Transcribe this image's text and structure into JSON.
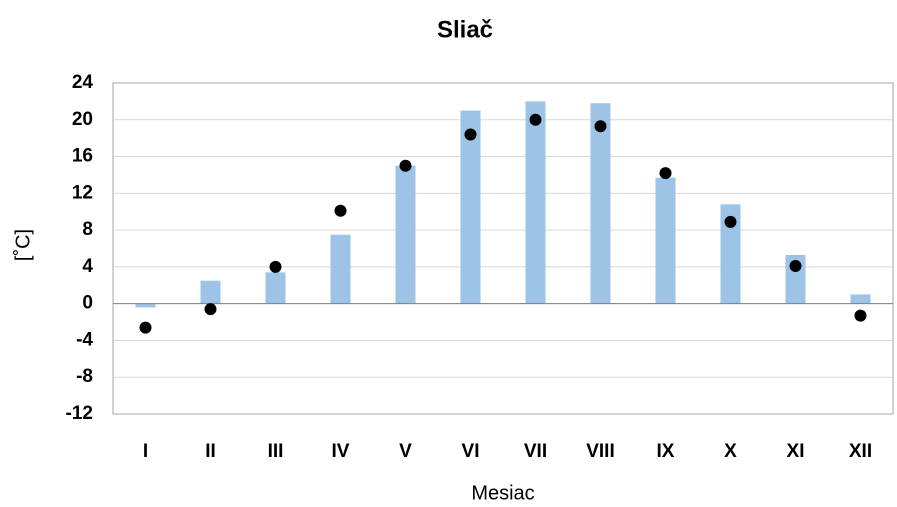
{
  "chart_data": {
    "type": "bar",
    "title": "Sliač",
    "xlabel": "Mesiac",
    "ylabel": "[˚C]",
    "categories": [
      "I",
      "II",
      "III",
      "IV",
      "V",
      "VI",
      "VII",
      "VIII",
      "IX",
      "X",
      "XI",
      "XII"
    ],
    "series": [
      {
        "type": "bar",
        "color": "#9dc3e6",
        "values": [
          -0.4,
          2.5,
          3.4,
          7.5,
          15.0,
          21.0,
          22.0,
          21.8,
          13.7,
          10.8,
          5.3,
          1.0
        ]
      },
      {
        "type": "scatter",
        "color": "#000000",
        "values": [
          -2.6,
          -0.6,
          4.0,
          10.1,
          15.0,
          18.4,
          20.0,
          19.3,
          14.2,
          8.9,
          4.1,
          -1.3
        ]
      }
    ],
    "ylim": [
      -12,
      24
    ],
    "yticks": [
      -12,
      -8,
      -4,
      0,
      4,
      8,
      12,
      16,
      20,
      24
    ],
    "grid": true
  }
}
